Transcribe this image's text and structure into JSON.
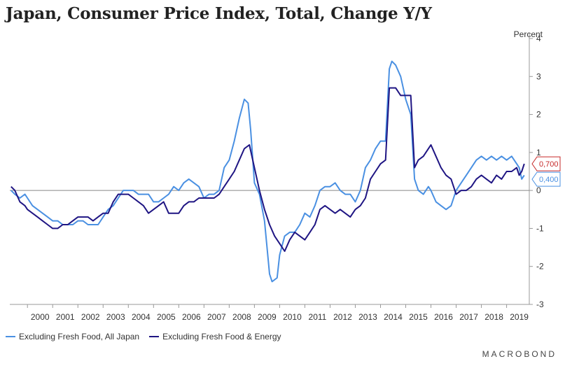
{
  "title": "Japan, Consumer Price Index, Total, Change Y/Y",
  "brand": "MACROBOND",
  "chart_data": {
    "type": "line",
    "ylabel": "Percent",
    "ylim": [
      -3,
      4
    ],
    "yticks": [
      4,
      3,
      2,
      1,
      0,
      -1,
      -2,
      -3
    ],
    "xlim": [
      1999.3,
      2019.9
    ],
    "xticks": [
      "2000",
      "2001",
      "2002",
      "2003",
      "2004",
      "2005",
      "2006",
      "2007",
      "2008",
      "2009",
      "2010",
      "2011",
      "2012",
      "2013",
      "2014",
      "2015",
      "2016",
      "2017",
      "2018",
      "2019"
    ],
    "zero_line": true,
    "legend_position": "bottom-left",
    "series": [
      {
        "name": "Excluding Fresh Food, All Japan",
        "color": "#4a90e2",
        "last_label": "0,400",
        "points": [
          [
            1999.35,
            0.0
          ],
          [
            1999.5,
            -0.1
          ],
          [
            1999.7,
            -0.2
          ],
          [
            1999.9,
            -0.1
          ],
          [
            2000.0,
            -0.2
          ],
          [
            2000.2,
            -0.4
          ],
          [
            2000.4,
            -0.5
          ],
          [
            2000.6,
            -0.6
          ],
          [
            2000.8,
            -0.7
          ],
          [
            2001.0,
            -0.8
          ],
          [
            2001.2,
            -0.8
          ],
          [
            2001.4,
            -0.9
          ],
          [
            2001.6,
            -0.9
          ],
          [
            2001.8,
            -0.9
          ],
          [
            2002.0,
            -0.8
          ],
          [
            2002.2,
            -0.8
          ],
          [
            2002.4,
            -0.9
          ],
          [
            2002.6,
            -0.9
          ],
          [
            2002.8,
            -0.9
          ],
          [
            2003.0,
            -0.7
          ],
          [
            2003.2,
            -0.5
          ],
          [
            2003.4,
            -0.4
          ],
          [
            2003.6,
            -0.2
          ],
          [
            2003.8,
            0.0
          ],
          [
            2004.0,
            0.0
          ],
          [
            2004.2,
            0.0
          ],
          [
            2004.4,
            -0.1
          ],
          [
            2004.6,
            -0.1
          ],
          [
            2004.8,
            -0.1
          ],
          [
            2005.0,
            -0.3
          ],
          [
            2005.2,
            -0.3
          ],
          [
            2005.4,
            -0.2
          ],
          [
            2005.6,
            -0.1
          ],
          [
            2005.8,
            0.1
          ],
          [
            2006.0,
            0.0
          ],
          [
            2006.2,
            0.2
          ],
          [
            2006.4,
            0.3
          ],
          [
            2006.6,
            0.2
          ],
          [
            2006.8,
            0.1
          ],
          [
            2007.0,
            -0.2
          ],
          [
            2007.2,
            -0.1
          ],
          [
            2007.4,
            -0.1
          ],
          [
            2007.6,
            0.0
          ],
          [
            2007.8,
            0.6
          ],
          [
            2008.0,
            0.8
          ],
          [
            2008.2,
            1.3
          ],
          [
            2008.4,
            1.9
          ],
          [
            2008.6,
            2.4
          ],
          [
            2008.75,
            2.3
          ],
          [
            2008.85,
            1.6
          ],
          [
            2009.0,
            0.2
          ],
          [
            2009.2,
            -0.1
          ],
          [
            2009.4,
            -0.8
          ],
          [
            2009.6,
            -2.2
          ],
          [
            2009.7,
            -2.4
          ],
          [
            2009.9,
            -2.3
          ],
          [
            2010.0,
            -1.7
          ],
          [
            2010.2,
            -1.2
          ],
          [
            2010.4,
            -1.1
          ],
          [
            2010.6,
            -1.1
          ],
          [
            2010.8,
            -0.9
          ],
          [
            2011.0,
            -0.6
          ],
          [
            2011.2,
            -0.7
          ],
          [
            2011.4,
            -0.4
          ],
          [
            2011.6,
            0.0
          ],
          [
            2011.8,
            0.1
          ],
          [
            2012.0,
            0.1
          ],
          [
            2012.2,
            0.2
          ],
          [
            2012.4,
            0.0
          ],
          [
            2012.6,
            -0.1
          ],
          [
            2012.8,
            -0.1
          ],
          [
            2013.0,
            -0.3
          ],
          [
            2013.2,
            0.0
          ],
          [
            2013.4,
            0.6
          ],
          [
            2013.6,
            0.8
          ],
          [
            2013.8,
            1.1
          ],
          [
            2014.0,
            1.3
          ],
          [
            2014.2,
            1.3
          ],
          [
            2014.35,
            3.2
          ],
          [
            2014.45,
            3.4
          ],
          [
            2014.6,
            3.3
          ],
          [
            2014.8,
            3.0
          ],
          [
            2015.0,
            2.4
          ],
          [
            2015.2,
            2.0
          ],
          [
            2015.35,
            0.3
          ],
          [
            2015.5,
            0.0
          ],
          [
            2015.7,
            -0.1
          ],
          [
            2015.9,
            0.1
          ],
          [
            2016.0,
            0.0
          ],
          [
            2016.2,
            -0.3
          ],
          [
            2016.4,
            -0.4
          ],
          [
            2016.6,
            -0.5
          ],
          [
            2016.8,
            -0.4
          ],
          [
            2017.0,
            0.0
          ],
          [
            2017.2,
            0.2
          ],
          [
            2017.4,
            0.4
          ],
          [
            2017.6,
            0.6
          ],
          [
            2017.8,
            0.8
          ],
          [
            2018.0,
            0.9
          ],
          [
            2018.2,
            0.8
          ],
          [
            2018.4,
            0.9
          ],
          [
            2018.6,
            0.8
          ],
          [
            2018.8,
            0.9
          ],
          [
            2019.0,
            0.8
          ],
          [
            2019.2,
            0.9
          ],
          [
            2019.4,
            0.7
          ],
          [
            2019.5,
            0.6
          ],
          [
            2019.6,
            0.3
          ],
          [
            2019.7,
            0.4
          ]
        ]
      },
      {
        "name": "Excluding Fresh Food & Energy",
        "color": "#1f1583",
        "last_label": "0,700",
        "points": [
          [
            1999.35,
            0.1
          ],
          [
            1999.5,
            0.0
          ],
          [
            1999.7,
            -0.3
          ],
          [
            1999.9,
            -0.4
          ],
          [
            2000.0,
            -0.5
          ],
          [
            2000.2,
            -0.6
          ],
          [
            2000.4,
            -0.7
          ],
          [
            2000.6,
            -0.8
          ],
          [
            2000.8,
            -0.9
          ],
          [
            2001.0,
            -1.0
          ],
          [
            2001.2,
            -1.0
          ],
          [
            2001.4,
            -0.9
          ],
          [
            2001.6,
            -0.9
          ],
          [
            2001.8,
            -0.8
          ],
          [
            2002.0,
            -0.7
          ],
          [
            2002.2,
            -0.7
          ],
          [
            2002.4,
            -0.7
          ],
          [
            2002.6,
            -0.8
          ],
          [
            2002.8,
            -0.7
          ],
          [
            2003.0,
            -0.6
          ],
          [
            2003.2,
            -0.6
          ],
          [
            2003.4,
            -0.3
          ],
          [
            2003.6,
            -0.1
          ],
          [
            2003.8,
            -0.1
          ],
          [
            2004.0,
            -0.1
          ],
          [
            2004.2,
            -0.2
          ],
          [
            2004.4,
            -0.3
          ],
          [
            2004.6,
            -0.4
          ],
          [
            2004.8,
            -0.6
          ],
          [
            2005.0,
            -0.5
          ],
          [
            2005.2,
            -0.4
          ],
          [
            2005.4,
            -0.3
          ],
          [
            2005.6,
            -0.6
          ],
          [
            2005.8,
            -0.6
          ],
          [
            2006.0,
            -0.6
          ],
          [
            2006.2,
            -0.4
          ],
          [
            2006.4,
            -0.3
          ],
          [
            2006.6,
            -0.3
          ],
          [
            2006.8,
            -0.2
          ],
          [
            2007.0,
            -0.2
          ],
          [
            2007.2,
            -0.2
          ],
          [
            2007.4,
            -0.2
          ],
          [
            2007.6,
            -0.1
          ],
          [
            2007.8,
            0.1
          ],
          [
            2008.0,
            0.3
          ],
          [
            2008.2,
            0.5
          ],
          [
            2008.4,
            0.8
          ],
          [
            2008.6,
            1.1
          ],
          [
            2008.8,
            1.2
          ],
          [
            2009.0,
            0.6
          ],
          [
            2009.2,
            0.0
          ],
          [
            2009.4,
            -0.5
          ],
          [
            2009.6,
            -0.9
          ],
          [
            2009.8,
            -1.2
          ],
          [
            2010.0,
            -1.4
          ],
          [
            2010.2,
            -1.6
          ],
          [
            2010.4,
            -1.3
          ],
          [
            2010.6,
            -1.1
          ],
          [
            2010.8,
            -1.2
          ],
          [
            2011.0,
            -1.3
          ],
          [
            2011.2,
            -1.1
          ],
          [
            2011.4,
            -0.9
          ],
          [
            2011.6,
            -0.5
          ],
          [
            2011.8,
            -0.4
          ],
          [
            2012.0,
            -0.5
          ],
          [
            2012.2,
            -0.6
          ],
          [
            2012.4,
            -0.5
          ],
          [
            2012.6,
            -0.6
          ],
          [
            2012.8,
            -0.7
          ],
          [
            2013.0,
            -0.5
          ],
          [
            2013.2,
            -0.4
          ],
          [
            2013.4,
            -0.2
          ],
          [
            2013.6,
            0.3
          ],
          [
            2013.8,
            0.5
          ],
          [
            2014.0,
            0.7
          ],
          [
            2014.2,
            0.8
          ],
          [
            2014.35,
            2.7
          ],
          [
            2014.6,
            2.7
          ],
          [
            2014.8,
            2.5
          ],
          [
            2015.0,
            2.5
          ],
          [
            2015.2,
            2.5
          ],
          [
            2015.35,
            0.6
          ],
          [
            2015.5,
            0.8
          ],
          [
            2015.7,
            0.9
          ],
          [
            2015.9,
            1.1
          ],
          [
            2016.0,
            1.2
          ],
          [
            2016.2,
            0.9
          ],
          [
            2016.4,
            0.6
          ],
          [
            2016.6,
            0.4
          ],
          [
            2016.8,
            0.3
          ],
          [
            2017.0,
            -0.1
          ],
          [
            2017.2,
            0.0
          ],
          [
            2017.4,
            0.0
          ],
          [
            2017.6,
            0.1
          ],
          [
            2017.8,
            0.3
          ],
          [
            2018.0,
            0.4
          ],
          [
            2018.2,
            0.3
          ],
          [
            2018.4,
            0.2
          ],
          [
            2018.6,
            0.4
          ],
          [
            2018.8,
            0.3
          ],
          [
            2019.0,
            0.5
          ],
          [
            2019.2,
            0.5
          ],
          [
            2019.4,
            0.6
          ],
          [
            2019.5,
            0.4
          ],
          [
            2019.6,
            0.5
          ],
          [
            2019.7,
            0.7
          ]
        ]
      }
    ]
  }
}
